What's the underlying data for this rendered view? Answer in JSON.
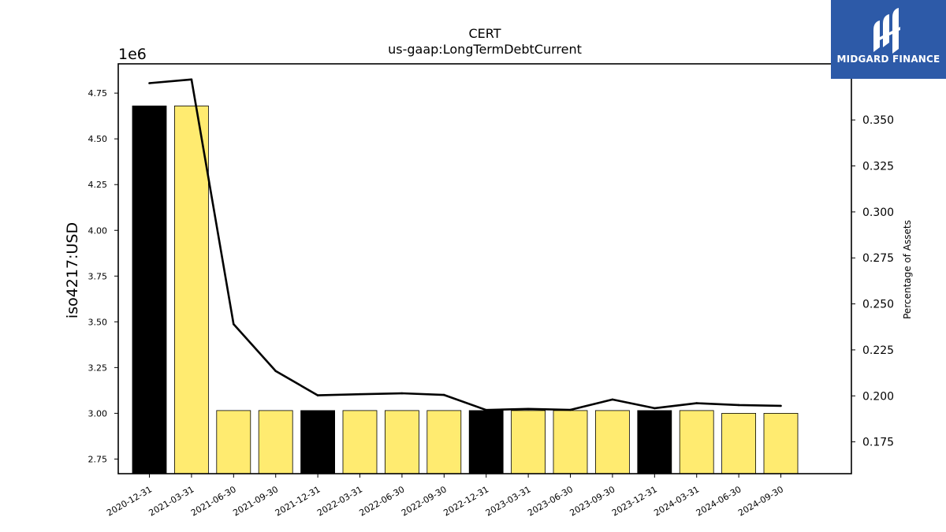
{
  "chart_data": {
    "type": "bar",
    "title": "CERT",
    "subtitle": "us-gaap:LongTermDebtCurrent",
    "ylabel": "iso4217:USD",
    "y_multiplier_label": "1e6",
    "y2label": "Percentage of Assets",
    "categories": [
      "2020-12-31",
      "2021-03-31",
      "2021-06-30",
      "2021-09-30",
      "2021-12-31",
      "2022-03-31",
      "2022-06-30",
      "2022-09-30",
      "2022-12-31",
      "2023-03-31",
      "2023-06-30",
      "2023-09-30",
      "2023-12-31",
      "2024-03-31",
      "2024-06-30",
      "2024-09-30"
    ],
    "series": [
      {
        "axis": "left",
        "kind": "bar",
        "values": [
          4680000,
          4680000,
          3015000,
          3015000,
          3015000,
          3015000,
          3015000,
          3015000,
          3015000,
          3015000,
          3015000,
          3015000,
          3015000,
          3015000,
          3000000,
          3000000
        ],
        "colors": [
          "#000000",
          "#ffeb70",
          "#ffeb70",
          "#ffeb70",
          "#000000",
          "#ffeb70",
          "#ffeb70",
          "#ffeb70",
          "#000000",
          "#ffeb70",
          "#ffeb70",
          "#ffeb70",
          "#000000",
          "#ffeb70",
          "#ffeb70",
          "#ffeb70"
        ]
      },
      {
        "axis": "right",
        "kind": "line",
        "color": "#000000",
        "values": [
          0.37,
          0.372,
          0.239,
          0.2135,
          0.2003,
          0.2009,
          0.2014,
          0.2005,
          0.1923,
          0.1929,
          0.1924,
          0.198,
          0.1933,
          0.196,
          0.195,
          0.1946
        ]
      }
    ],
    "ylim": [
      2670000,
      4910000
    ],
    "y_ticks": [
      2750000,
      3000000,
      3250000,
      3500000,
      3750000,
      4000000,
      4250000,
      4500000,
      4750000
    ],
    "y_tick_labels": [
      "2.75",
      "3.00",
      "3.25",
      "3.50",
      "3.75",
      "4.00",
      "4.25",
      "4.50",
      "4.75"
    ],
    "y2lim": [
      0.1577,
      0.3805
    ],
    "y2_ticks": [
      0.175,
      0.2,
      0.225,
      0.25,
      0.275,
      0.3,
      0.325,
      0.35
    ],
    "y2_tick_labels": [
      "0.175",
      "0.200",
      "0.225",
      "0.250",
      "0.275",
      "0.300",
      "0.325",
      "0.350"
    ],
    "grid": false,
    "legend": "none"
  },
  "logo": {
    "text": "MIDGARD FINANCE",
    "color": "#2d5aa8"
  }
}
